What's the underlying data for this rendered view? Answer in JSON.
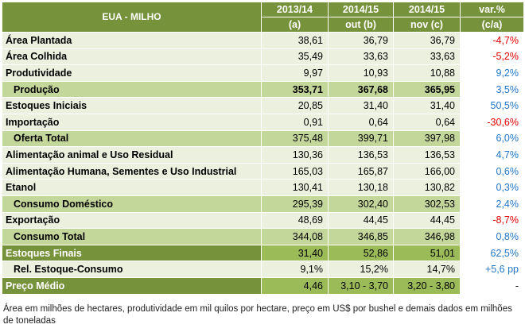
{
  "table": {
    "title": "EUA - MILHO",
    "columns": [
      {
        "line1": "2013/14",
        "line2": "(a)"
      },
      {
        "line1": "2014/15",
        "line2": "out (b)"
      },
      {
        "line1": "2014/15",
        "line2": "nov (c)"
      },
      {
        "line1": "var.%",
        "line2": "(c/a)"
      }
    ],
    "rows": [
      {
        "label": "Área Plantada",
        "a": "38,61",
        "b": "36,79",
        "c": "36,79",
        "change": "-4,7%"
      },
      {
        "label": "Área Colhida",
        "a": "35,49",
        "b": "33,63",
        "c": "33,63",
        "change": "-5,2%"
      },
      {
        "label": "Produtividade",
        "a": "9,97",
        "b": "10,93",
        "c": "10,88",
        "change": "9,2%"
      },
      {
        "label": "Produção",
        "a": "353,71",
        "b": "367,68",
        "c": "365,95",
        "change": "3,5%"
      },
      {
        "label": "Estoques Iniciais",
        "a": "20,85",
        "b": "31,40",
        "c": "31,40",
        "change": "50,5%"
      },
      {
        "label": "Importação",
        "a": "0,91",
        "b": "0,64",
        "c": "0,64",
        "change": "-30,6%"
      },
      {
        "label": "Oferta Total",
        "a": "375,48",
        "b": "399,71",
        "c": "397,98",
        "change": "6,0%"
      },
      {
        "label": "Alimentação animal e Uso Residual",
        "a": "130,36",
        "b": "136,53",
        "c": "136,53",
        "change": "4,7%"
      },
      {
        "label": "Alimentação Humana, Sementes e Uso Industrial",
        "a": "165,03",
        "b": "165,87",
        "c": "166,00",
        "change": "0,6%"
      },
      {
        "label": "Etanol",
        "a": "130,41",
        "b": "130,18",
        "c": "130,82",
        "change": "0,3%"
      },
      {
        "label": "Consumo Doméstico",
        "a": "295,39",
        "b": "302,40",
        "c": "302,53",
        "change": "2,4%"
      },
      {
        "label": "Exportação",
        "a": "48,69",
        "b": "44,45",
        "c": "44,45",
        "change": "-8,7%"
      },
      {
        "label": "Consumo Total",
        "a": "344,08",
        "b": "346,85",
        "c": "346,98",
        "change": "0,8%"
      },
      {
        "label": "Estoques Finais",
        "a": "31,40",
        "b": "52,86",
        "c": "51,01",
        "change": "62,5%"
      },
      {
        "label": "Rel. Estoque-Consumo",
        "a": "9,1%",
        "b": "15,2%",
        "c": "14,7%",
        "change": "+5,6 pp"
      },
      {
        "label": "Preço Médio",
        "a": "4,46",
        "b": "3,10 - 3,70",
        "c": "3,20 - 3,80",
        "change": "-"
      }
    ]
  },
  "footnote": "Área em milhões de hectares, produtividade em mil quilos por hectare, preço em US$ por bushel e demais dados em milhões de toneladas",
  "colors": {
    "header": "#76933c",
    "light_row": "#ebf1de",
    "mid_row": "#c4d79b",
    "dark_row": "#9bbb59",
    "negative": "#e00000",
    "positive": "#1f75c8"
  }
}
